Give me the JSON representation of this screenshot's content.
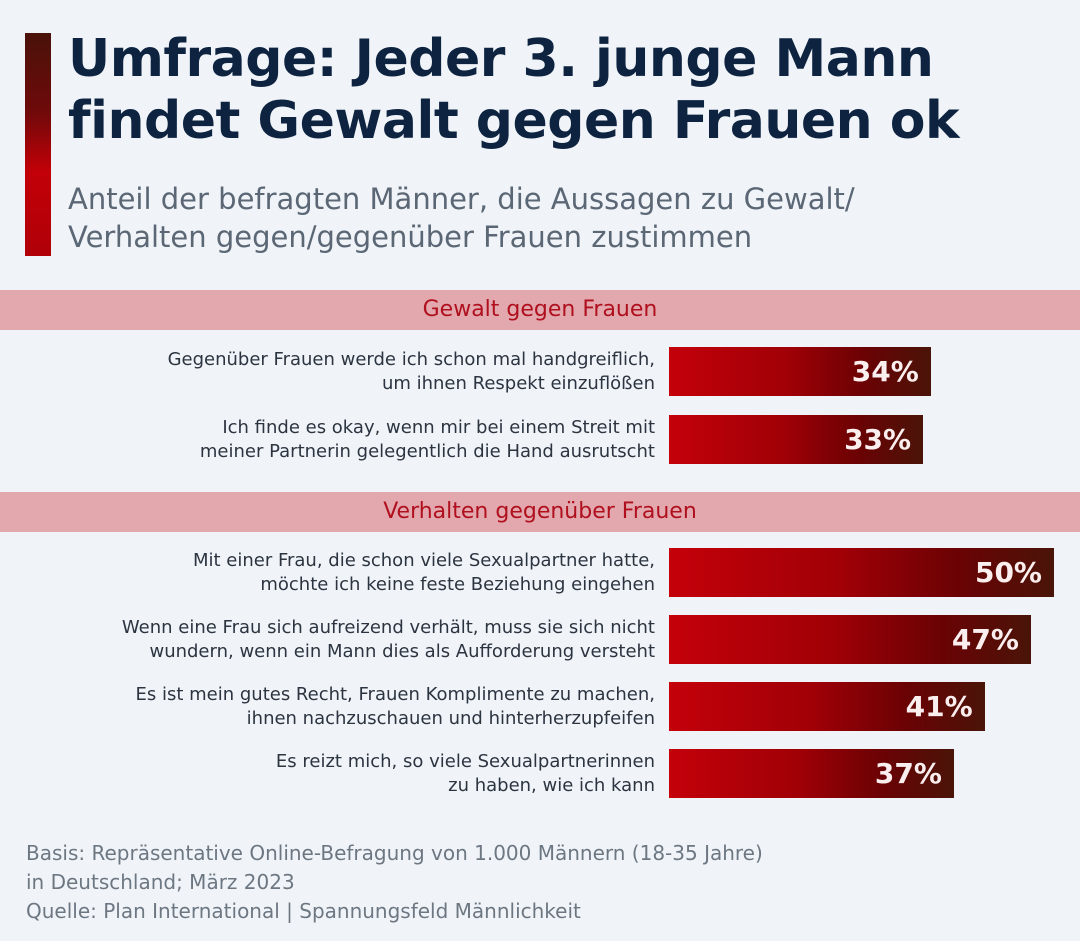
{
  "header": {
    "title_line1": "Umfrage: Jeder 3. junge Mann",
    "title_line2": "findet Gewalt gegen Frauen ok",
    "subtitle_line1": "Anteil der befragten Männer, die Aussagen zu Gewalt/",
    "subtitle_line2": "Verhalten gegen/gegenüber Frauen zustimmen"
  },
  "colors": {
    "title": "#0d2340",
    "section_header_bg": "#e2a8ae",
    "section_header_text": "#b0101e",
    "bar_start": "#c4000a",
    "bar_end": "#4a1408"
  },
  "chart_data": {
    "type": "bar",
    "orientation": "horizontal",
    "title": "Umfrage: Jeder 3. junge Mann findet Gewalt gegen Frauen ok",
    "subtitle": "Anteil der befragten Männer, die Aussagen zu Gewalt/Verhalten gegen/gegenüber Frauen zustimmen",
    "unit": "%",
    "xlim": [
      0,
      50
    ],
    "grid": false,
    "legend": "none",
    "groups": [
      {
        "name": "Gewalt gegen Frauen",
        "items": [
          {
            "label_line1": "Gegenüber Frauen werde ich schon mal handgreiflich,",
            "label_line2": "um ihnen Respekt einzuflößen",
            "value": 34,
            "value_label": "34%"
          },
          {
            "label_line1": "Ich finde es okay, wenn mir bei einem Streit mit",
            "label_line2": "meiner Partnerin gelegentlich die Hand ausrutscht",
            "value": 33,
            "value_label": "33%"
          }
        ]
      },
      {
        "name": "Verhalten gegenüber Frauen",
        "items": [
          {
            "label_line1": "Mit einer Frau, die schon viele Sexualpartner hatte,",
            "label_line2": "möchte ich keine feste Beziehung eingehen",
            "value": 50,
            "value_label": "50%"
          },
          {
            "label_line1": "Wenn eine Frau sich aufreizend verhält, muss sie sich nicht",
            "label_line2": "wundern, wenn ein Mann dies als Aufforderung versteht",
            "value": 47,
            "value_label": "47%"
          },
          {
            "label_line1": "Es ist mein gutes Recht, Frauen Komplimente zu machen,",
            "label_line2": "ihnen nachzuschauen und hinterherzupfeifen",
            "value": 41,
            "value_label": "41%"
          },
          {
            "label_line1": "Es reizt mich, so viele Sexualpartnerinnen",
            "label_line2": "zu haben, wie ich kann",
            "value": 37,
            "value_label": "37%"
          }
        ]
      }
    ]
  },
  "footer": {
    "basis_line1": "Basis: Repräsentative Online-Befragung von 1.000 Männern (18-35 Jahre)",
    "basis_line2": "in Deutschland; März 2023",
    "source": "Quelle: Plan International | Spannungsfeld Männlichkeit"
  }
}
